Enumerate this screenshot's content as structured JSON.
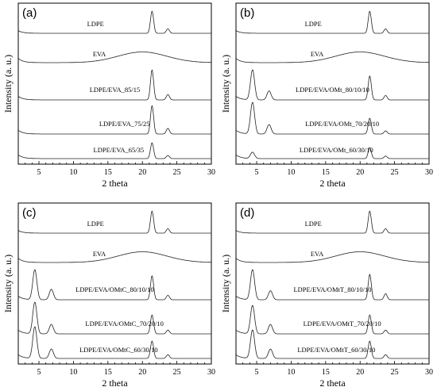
{
  "chart_data": [
    {
      "type": "line",
      "panel_label": "(a)",
      "xlabel": "2 theta",
      "ylabel": "Intensity (a. u.)",
      "xlim": [
        2,
        30
      ],
      "xticks": [
        "5",
        "10",
        "15",
        "20",
        "25",
        "30"
      ],
      "series": [
        {
          "name": "LDPE",
          "peaks": [
            [
              21.4,
              1.0
            ],
            [
              23.7,
              0.2
            ]
          ],
          "halo": null
        },
        {
          "name": "EVA",
          "peaks": [],
          "halo": [
            20.0,
            0.3
          ]
        },
        {
          "name": "LDPE/EVA_85/15",
          "peaks": [
            [
              21.4,
              1.0
            ],
            [
              23.7,
              0.18
            ]
          ],
          "halo": null
        },
        {
          "name": "LDPE/EVA_75/25",
          "peaks": [
            [
              21.4,
              0.9
            ],
            [
              23.7,
              0.18
            ]
          ],
          "halo": null
        },
        {
          "name": "LDPE/EVA_65/35",
          "peaks": [
            [
              21.4,
              0.5
            ],
            [
              23.7,
              0.1
            ]
          ],
          "halo": null
        }
      ]
    },
    {
      "type": "line",
      "panel_label": "(b)",
      "xlabel": "2 theta",
      "ylabel": "Intensity (a. u.)",
      "xlim": [
        2,
        30
      ],
      "xticks": [
        "5",
        "10",
        "15",
        "20",
        "25",
        "30"
      ],
      "series": [
        {
          "name": "LDPE",
          "peaks": [
            [
              21.4,
              1.0
            ],
            [
              23.7,
              0.2
            ]
          ],
          "halo": null
        },
        {
          "name": "EVA",
          "peaks": [],
          "halo": [
            20.0,
            0.3
          ]
        },
        {
          "name": "LDPE/EVA/OMt_80/10/10",
          "peaks": [
            [
              4.4,
              1.0
            ],
            [
              6.8,
              0.3
            ],
            [
              21.4,
              0.8
            ],
            [
              23.7,
              0.15
            ]
          ],
          "halo": null
        },
        {
          "name": "LDPE/EVA/OMt_70/20/10",
          "peaks": [
            [
              4.4,
              1.0
            ],
            [
              6.8,
              0.3
            ],
            [
              21.4,
              0.5
            ],
            [
              23.7,
              0.1
            ]
          ],
          "halo": null
        },
        {
          "name": "LDPE/EVA/OMt_60/30/10",
          "peaks": [
            [
              4.4,
              0.2
            ],
            [
              21.4,
              0.35
            ],
            [
              23.7,
              0.08
            ]
          ],
          "halo": null
        }
      ]
    },
    {
      "type": "line",
      "panel_label": "(c)",
      "xlabel": "2 theta",
      "ylabel": "Intensity (a. u.)",
      "xlim": [
        2,
        30
      ],
      "xticks": [
        "5",
        "10",
        "15",
        "20",
        "25",
        "30"
      ],
      "series": [
        {
          "name": "LDPE",
          "peaks": [
            [
              21.4,
              1.0
            ],
            [
              23.7,
              0.2
            ]
          ],
          "halo": null
        },
        {
          "name": "EVA",
          "peaks": [],
          "halo": [
            20.0,
            0.3
          ]
        },
        {
          "name": "LDPE/EVA/OMtC_80/10/10",
          "peaks": [
            [
              4.4,
              1.0
            ],
            [
              6.8,
              0.35
            ],
            [
              21.4,
              0.8
            ],
            [
              23.7,
              0.15
            ]
          ],
          "halo": null
        },
        {
          "name": "LDPE/EVA/OMtC_70/20/10",
          "peaks": [
            [
              4.4,
              1.0
            ],
            [
              6.8,
              0.3
            ],
            [
              21.4,
              0.6
            ],
            [
              23.7,
              0.12
            ]
          ],
          "halo": null
        },
        {
          "name": "LDPE/EVA/OMtC_60/30/10",
          "peaks": [
            [
              4.4,
              1.0
            ],
            [
              6.8,
              0.3
            ],
            [
              21.4,
              0.55
            ],
            [
              23.7,
              0.12
            ]
          ],
          "halo": null
        }
      ]
    },
    {
      "type": "line",
      "panel_label": "(d)",
      "xlabel": "2 theta",
      "ylabel": "Intensity (a. u.)",
      "xlim": [
        2,
        30
      ],
      "xticks": [
        "5",
        "10",
        "15",
        "20",
        "25",
        "30"
      ],
      "series": [
        {
          "name": "LDPE",
          "peaks": [
            [
              21.4,
              1.0
            ],
            [
              23.7,
              0.2
            ]
          ],
          "halo": null
        },
        {
          "name": "EVA",
          "peaks": [],
          "halo": [
            20.0,
            0.3
          ]
        },
        {
          "name": "LDPE/EVA/OMtT_80/10/10",
          "peaks": [
            [
              4.4,
              1.0
            ],
            [
              7.0,
              0.3
            ],
            [
              21.4,
              0.85
            ],
            [
              23.7,
              0.2
            ]
          ],
          "halo": null
        },
        {
          "name": "LDPE/EVA/OMtT_70/20/10",
          "peaks": [
            [
              4.4,
              0.9
            ],
            [
              7.0,
              0.3
            ],
            [
              21.4,
              0.6
            ],
            [
              23.7,
              0.12
            ]
          ],
          "halo": null
        },
        {
          "name": "LDPE/EVA/OMtT_60/30/10",
          "peaks": [
            [
              4.4,
              0.9
            ],
            [
              7.0,
              0.3
            ],
            [
              21.4,
              0.55
            ],
            [
              23.7,
              0.12
            ]
          ],
          "halo": null
        }
      ]
    }
  ]
}
